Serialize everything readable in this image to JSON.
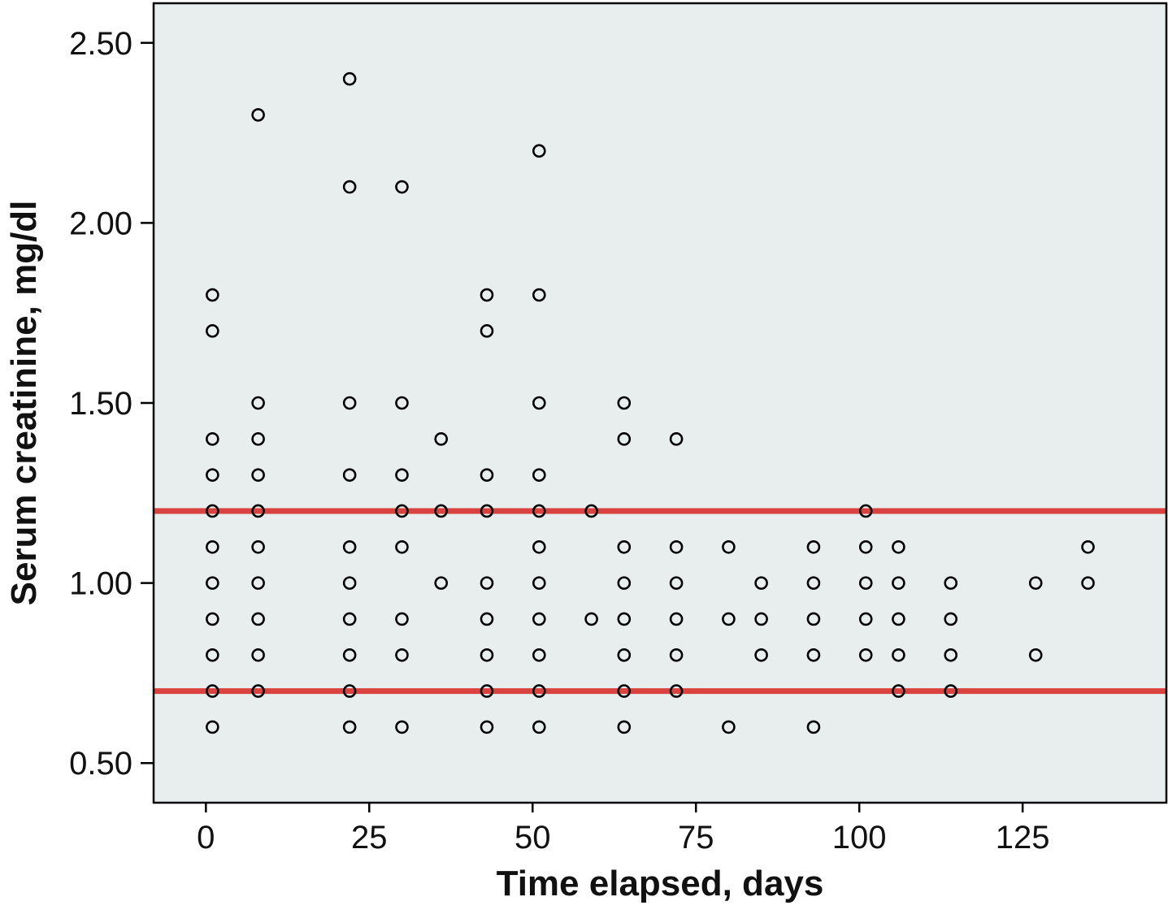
{
  "chart_data": {
    "type": "scatter",
    "title": "",
    "xlabel": "Time elapsed, days",
    "ylabel": "Serum creatinine, mg/dl",
    "xlim": [
      -8,
      147
    ],
    "ylim": [
      0.39,
      2.61
    ],
    "xticks": [
      0,
      25,
      50,
      75,
      100,
      125
    ],
    "xtick_labels": [
      "0",
      "25",
      "50",
      "75",
      "100",
      "125"
    ],
    "yticks": [
      0.5,
      1.0,
      1.5,
      2.0,
      2.5
    ],
    "ytick_labels": [
      "0.50",
      "1.00",
      "1.50",
      "2.00",
      "2.50"
    ],
    "grid": false,
    "background_color": "#e8eeee",
    "marker": "hollow-circle",
    "marker_color": "#000000",
    "reference_lines": [
      {
        "axis": "y",
        "value": 1.2,
        "color": "#d9423f"
      },
      {
        "axis": "y",
        "value": 0.7,
        "color": "#d9423f"
      }
    ],
    "points": [
      {
        "x": 1,
        "y": 1.8
      },
      {
        "x": 1,
        "y": 1.7
      },
      {
        "x": 1,
        "y": 1.4
      },
      {
        "x": 1,
        "y": 1.3
      },
      {
        "x": 1,
        "y": 1.2
      },
      {
        "x": 1,
        "y": 1.1
      },
      {
        "x": 1,
        "y": 1.0
      },
      {
        "x": 1,
        "y": 0.9
      },
      {
        "x": 1,
        "y": 0.8
      },
      {
        "x": 1,
        "y": 0.7
      },
      {
        "x": 1,
        "y": 0.6
      },
      {
        "x": 8,
        "y": 2.3
      },
      {
        "x": 8,
        "y": 1.5
      },
      {
        "x": 8,
        "y": 1.4
      },
      {
        "x": 8,
        "y": 1.3
      },
      {
        "x": 8,
        "y": 1.2
      },
      {
        "x": 8,
        "y": 1.1
      },
      {
        "x": 8,
        "y": 1.0
      },
      {
        "x": 8,
        "y": 0.9
      },
      {
        "x": 8,
        "y": 0.8
      },
      {
        "x": 8,
        "y": 0.7
      },
      {
        "x": 22,
        "y": 2.4
      },
      {
        "x": 22,
        "y": 2.1
      },
      {
        "x": 22,
        "y": 1.5
      },
      {
        "x": 22,
        "y": 1.3
      },
      {
        "x": 22,
        "y": 1.1
      },
      {
        "x": 22,
        "y": 1.0
      },
      {
        "x": 22,
        "y": 0.9
      },
      {
        "x": 22,
        "y": 0.8
      },
      {
        "x": 22,
        "y": 0.7
      },
      {
        "x": 22,
        "y": 0.6
      },
      {
        "x": 30,
        "y": 2.1
      },
      {
        "x": 30,
        "y": 1.5
      },
      {
        "x": 30,
        "y": 1.3
      },
      {
        "x": 30,
        "y": 1.2
      },
      {
        "x": 30,
        "y": 1.1
      },
      {
        "x": 30,
        "y": 0.9
      },
      {
        "x": 30,
        "y": 0.8
      },
      {
        "x": 30,
        "y": 0.6
      },
      {
        "x": 36,
        "y": 1.4
      },
      {
        "x": 36,
        "y": 1.2
      },
      {
        "x": 36,
        "y": 1.0
      },
      {
        "x": 43,
        "y": 1.8
      },
      {
        "x": 43,
        "y": 1.7
      },
      {
        "x": 43,
        "y": 1.3
      },
      {
        "x": 43,
        "y": 1.2
      },
      {
        "x": 43,
        "y": 1.0
      },
      {
        "x": 43,
        "y": 0.9
      },
      {
        "x": 43,
        "y": 0.8
      },
      {
        "x": 43,
        "y": 0.7
      },
      {
        "x": 43,
        "y": 0.6
      },
      {
        "x": 51,
        "y": 2.2
      },
      {
        "x": 51,
        "y": 1.8
      },
      {
        "x": 51,
        "y": 1.5
      },
      {
        "x": 51,
        "y": 1.3
      },
      {
        "x": 51,
        "y": 1.2
      },
      {
        "x": 51,
        "y": 1.1
      },
      {
        "x": 51,
        "y": 1.0
      },
      {
        "x": 51,
        "y": 0.9
      },
      {
        "x": 51,
        "y": 0.8
      },
      {
        "x": 51,
        "y": 0.7
      },
      {
        "x": 51,
        "y": 0.6
      },
      {
        "x": 59,
        "y": 1.2
      },
      {
        "x": 59,
        "y": 0.9
      },
      {
        "x": 64,
        "y": 1.5
      },
      {
        "x": 64,
        "y": 1.4
      },
      {
        "x": 64,
        "y": 1.1
      },
      {
        "x": 64,
        "y": 1.0
      },
      {
        "x": 64,
        "y": 0.9
      },
      {
        "x": 64,
        "y": 0.8
      },
      {
        "x": 64,
        "y": 0.7
      },
      {
        "x": 64,
        "y": 0.6
      },
      {
        "x": 72,
        "y": 1.4
      },
      {
        "x": 72,
        "y": 1.1
      },
      {
        "x": 72,
        "y": 1.0
      },
      {
        "x": 72,
        "y": 0.9
      },
      {
        "x": 72,
        "y": 0.8
      },
      {
        "x": 72,
        "y": 0.7
      },
      {
        "x": 80,
        "y": 1.1
      },
      {
        "x": 80,
        "y": 0.9
      },
      {
        "x": 80,
        "y": 0.6
      },
      {
        "x": 85,
        "y": 1.0
      },
      {
        "x": 85,
        "y": 0.9
      },
      {
        "x": 85,
        "y": 0.8
      },
      {
        "x": 93,
        "y": 1.1
      },
      {
        "x": 93,
        "y": 1.0
      },
      {
        "x": 93,
        "y": 0.9
      },
      {
        "x": 93,
        "y": 0.8
      },
      {
        "x": 93,
        "y": 0.6
      },
      {
        "x": 101,
        "y": 1.2
      },
      {
        "x": 101,
        "y": 1.1
      },
      {
        "x": 101,
        "y": 1.0
      },
      {
        "x": 101,
        "y": 0.9
      },
      {
        "x": 101,
        "y": 0.8
      },
      {
        "x": 106,
        "y": 1.1
      },
      {
        "x": 106,
        "y": 1.0
      },
      {
        "x": 106,
        "y": 0.9
      },
      {
        "x": 106,
        "y": 0.8
      },
      {
        "x": 106,
        "y": 0.7
      },
      {
        "x": 114,
        "y": 1.0
      },
      {
        "x": 114,
        "y": 0.9
      },
      {
        "x": 114,
        "y": 0.8
      },
      {
        "x": 114,
        "y": 0.7
      },
      {
        "x": 127,
        "y": 1.0
      },
      {
        "x": 127,
        "y": 0.8
      },
      {
        "x": 135,
        "y": 1.1
      },
      {
        "x": 135,
        "y": 1.0
      }
    ]
  }
}
